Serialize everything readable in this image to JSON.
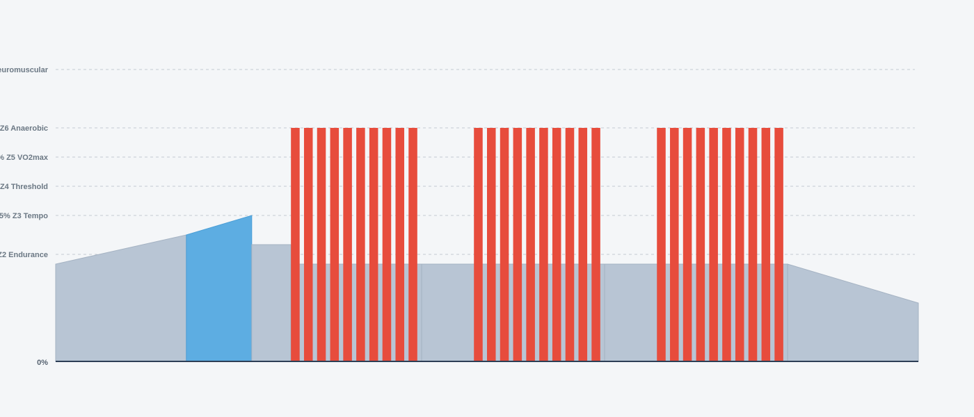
{
  "chart_data": {
    "type": "area",
    "title": "",
    "xlabel": "",
    "ylabel": "",
    "x_unit": "minutes",
    "xlim": [
      0,
      66
    ],
    "ylim": [
      0,
      160
    ],
    "zero_label": "0%",
    "zones": [
      {
        "name": "Neuromuscular",
        "label": "euromuscular",
        "value": 150
      },
      {
        "name": "Z6 Anaerobic",
        "label": "Z6 Anaerobic",
        "value": 120
      },
      {
        "name": "Z5 VO2max",
        "label": "% Z5 VO2max",
        "value": 105
      },
      {
        "name": "Z4 Threshold",
        "label": "Z4 Threshold",
        "value": 90
      },
      {
        "name": "Z3 Tempo",
        "label": "5% Z3 Tempo",
        "value": 75
      },
      {
        "name": "Z2 Endurance",
        "label": "Z2 Endurance",
        "value": 55
      }
    ],
    "segments": [
      {
        "kind": "ramp",
        "start": 0,
        "end": 10,
        "from": 50,
        "to": 65
      },
      {
        "kind": "tempo",
        "start": 10,
        "end": 15,
        "from": 65,
        "to": 75
      },
      {
        "kind": "steady",
        "start": 15,
        "end": 18,
        "value": 60
      },
      {
        "kind": "recovery",
        "start": 18,
        "end": 28,
        "value": 50
      },
      {
        "kind": "recovery",
        "start": 28,
        "end": 42,
        "value": 50
      },
      {
        "kind": "recovery",
        "start": 42,
        "end": 56,
        "value": 50
      },
      {
        "kind": "ramp",
        "start": 56,
        "end": 66,
        "from": 50,
        "to": 30
      }
    ],
    "interval_sets": [
      {
        "start": 18,
        "reps": 10,
        "on_duration": 0.667,
        "period": 1,
        "value": 120
      },
      {
        "start": 32,
        "reps": 10,
        "on_duration": 0.667,
        "period": 1,
        "value": 120
      },
      {
        "start": 46,
        "reps": 10,
        "on_duration": 0.667,
        "period": 1,
        "value": 120
      }
    ]
  }
}
